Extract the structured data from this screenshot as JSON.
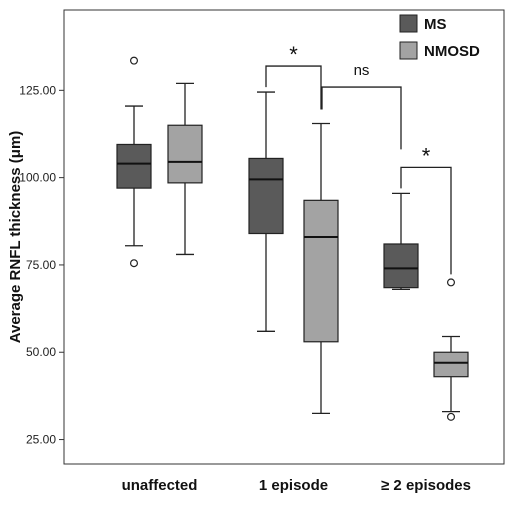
{
  "chart_data": {
    "type": "boxplot",
    "ylabel": "Average RNFL thickness (μm)",
    "ylim": [
      18,
      148
    ],
    "y_ticks": [
      "25.00",
      "50.00",
      "75.00",
      "100.00",
      "125.00"
    ],
    "y_tick_values": [
      25,
      50,
      75,
      100,
      125
    ],
    "categories": [
      "unaffected",
      "1 episode",
      "≥ 2 episodes"
    ],
    "legend": {
      "placement": "top-right"
    },
    "grid": false,
    "series": [
      {
        "name": "MS",
        "color": "#5a5a5a",
        "boxes": [
          {
            "min": 80.5,
            "q1": 97,
            "median": 104,
            "q3": 109.5,
            "max": 120.5,
            "outliers": [
              133.5,
              75.5
            ]
          },
          {
            "min": 56,
            "q1": 84,
            "median": 99.5,
            "q3": 105.5,
            "max": 124.5,
            "outliers": []
          },
          {
            "min": 68,
            "q1": 68.5,
            "median": 74,
            "q3": 81,
            "max": 95.5,
            "outliers": []
          }
        ]
      },
      {
        "name": "NMOSD",
        "color": "#a3a3a3",
        "boxes": [
          {
            "min": 78,
            "q1": 98.5,
            "median": 104.5,
            "q3": 115,
            "max": 127,
            "outliers": []
          },
          {
            "min": 32.5,
            "q1": 53,
            "median": 83,
            "q3": 93.5,
            "max": 115.5,
            "outliers": []
          },
          {
            "min": 33,
            "q1": 43,
            "median": 47,
            "q3": 50,
            "max": 54.5,
            "outliers": [
              70,
              31.5
            ]
          }
        ]
      }
    ],
    "annotations": [
      {
        "label": "*",
        "between": "MS 1 episode – NMOSD 1 episode"
      },
      {
        "label": "ns",
        "between": "NMOSD 1 episode – MS ≥ 2 episodes"
      },
      {
        "label": "*",
        "between": "MS ≥ 2 episodes – NMOSD ≥ 2 episodes"
      }
    ]
  }
}
